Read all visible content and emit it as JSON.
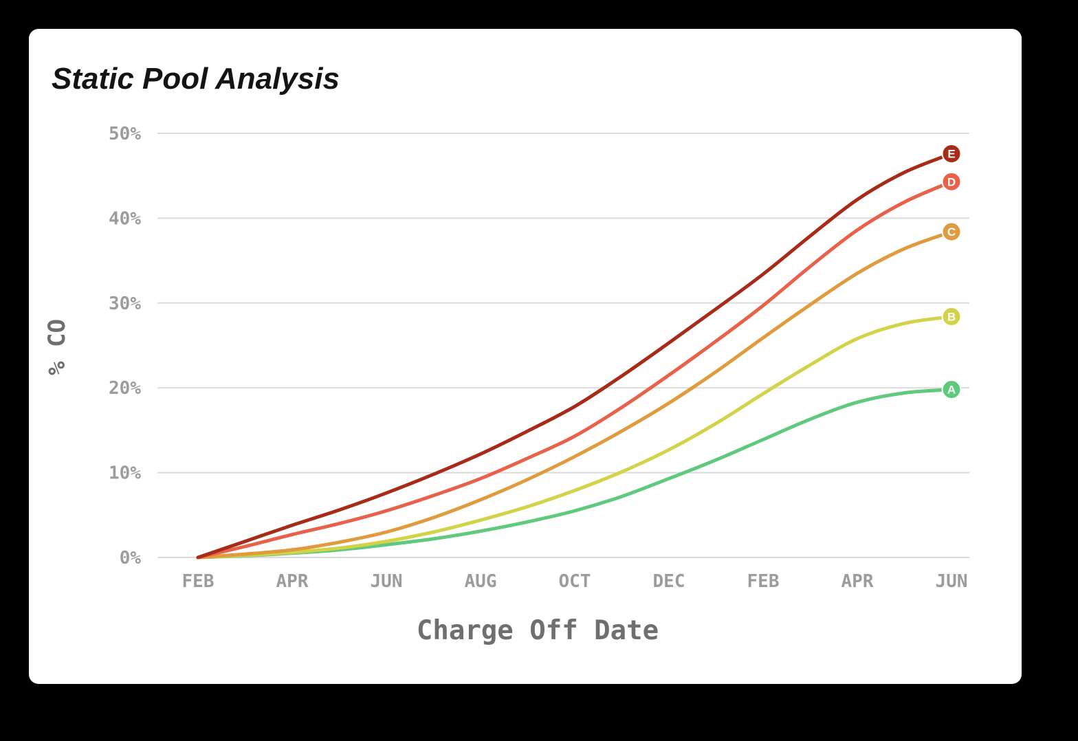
{
  "title": "Static Pool Analysis",
  "colors": {
    "page_background": "#000000",
    "card_background": "#FFFFFF",
    "gridline": "#DBDBDB",
    "tick_label": "#9C9C9C",
    "axis_title": "#6F6F6F",
    "title_text": "#141414"
  },
  "chart_data": {
    "type": "line",
    "title": "Static Pool Analysis",
    "xlabel": "Charge Off Date",
    "ylabel": "% CO",
    "ylim": [
      0,
      50
    ],
    "grid": "horizontal",
    "y_tick_labels": [
      "0%",
      "10%",
      "20%",
      "30%",
      "40%",
      "50%"
    ],
    "x_tick_labels": [
      "FEB",
      "APR",
      "JUN",
      "AUG",
      "OCT",
      "DEC",
      "FEB",
      "APR",
      "JUN"
    ],
    "points_per_series": 17,
    "months_per_tick": 2,
    "legend_position": "line-end-markers",
    "series": [
      {
        "name": "A",
        "color": "#5FC97E",
        "end_value": 19.8,
        "values": [
          0,
          0.2,
          0.5,
          0.9,
          1.5,
          2.2,
          3.1,
          4.2,
          5.5,
          7.2,
          9.3,
          11.5,
          13.9,
          16.3,
          18.3,
          19.4,
          19.8
        ]
      },
      {
        "name": "B",
        "color": "#D2D348",
        "end_value": 28.4,
        "values": [
          0,
          0.25,
          0.6,
          1.1,
          1.9,
          3.0,
          4.4,
          6.0,
          7.9,
          10.1,
          12.7,
          15.8,
          19.3,
          22.7,
          25.8,
          27.6,
          28.4
        ]
      },
      {
        "name": "C",
        "color": "#E09B3E",
        "end_value": 38.4,
        "values": [
          0,
          0.4,
          0.9,
          1.8,
          3.0,
          4.7,
          6.8,
          9.2,
          11.9,
          14.9,
          18.2,
          21.9,
          25.9,
          29.8,
          33.5,
          36.4,
          38.4
        ]
      },
      {
        "name": "D",
        "color": "#E8614B",
        "end_value": 44.3,
        "values": [
          0,
          1.3,
          2.7,
          4.0,
          5.5,
          7.3,
          9.3,
          11.7,
          14.3,
          17.7,
          21.5,
          25.5,
          29.7,
          34.3,
          38.6,
          41.9,
          44.3
        ]
      },
      {
        "name": "E",
        "color": "#A72B18",
        "end_value": 47.6,
        "values": [
          0,
          1.9,
          3.8,
          5.6,
          7.6,
          9.8,
          12.2,
          14.9,
          17.8,
          21.4,
          25.3,
          29.3,
          33.4,
          37.9,
          42.2,
          45.4,
          47.6
        ]
      }
    ]
  }
}
